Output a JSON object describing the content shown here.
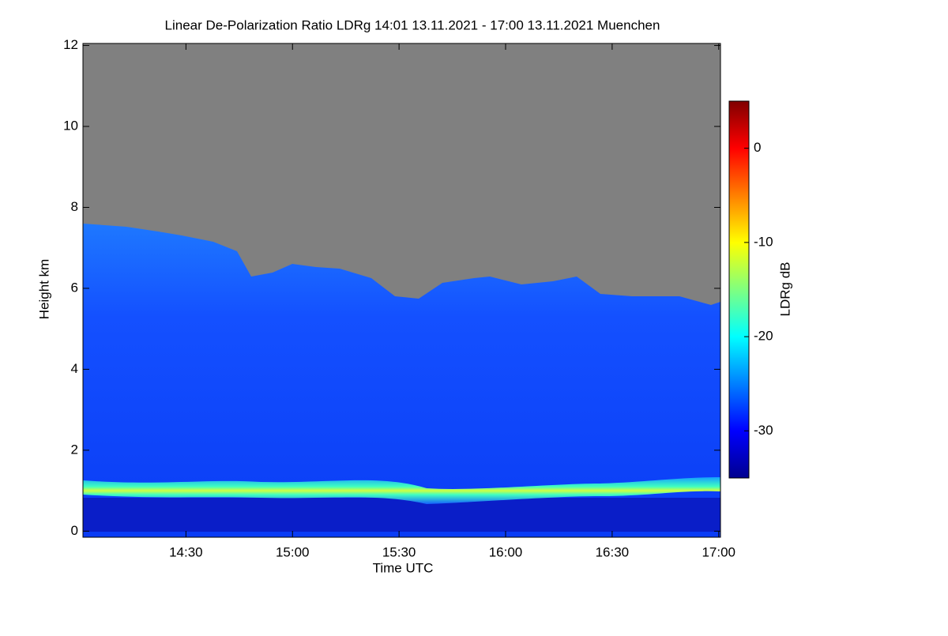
{
  "chart_data": {
    "type": "heatmap",
    "title": "Linear De-Polarization Ratio LDRg   14:01 13.11.2021 - 17:00 13.11.2021 Muenchen",
    "xlabel": "Time UTC",
    "ylabel": "Height km",
    "colorbar_label": "LDRg dB",
    "xlim": [
      841,
      1020.5
    ],
    "xticks": [
      {
        "value": 870,
        "label": "14:30"
      },
      {
        "value": 900,
        "label": "15:00"
      },
      {
        "value": 930,
        "label": "15:30"
      },
      {
        "value": 960,
        "label": "16:00"
      },
      {
        "value": 990,
        "label": "16:30"
      },
      {
        "value": 1020,
        "label": "17:00"
      }
    ],
    "ylim": [
      -0.15,
      12.05
    ],
    "yticks": [
      0,
      2,
      4,
      6,
      8,
      10,
      12
    ],
    "clim": [
      -35,
      5
    ],
    "cticks": [
      0,
      -10,
      -20,
      -30
    ]
  }
}
